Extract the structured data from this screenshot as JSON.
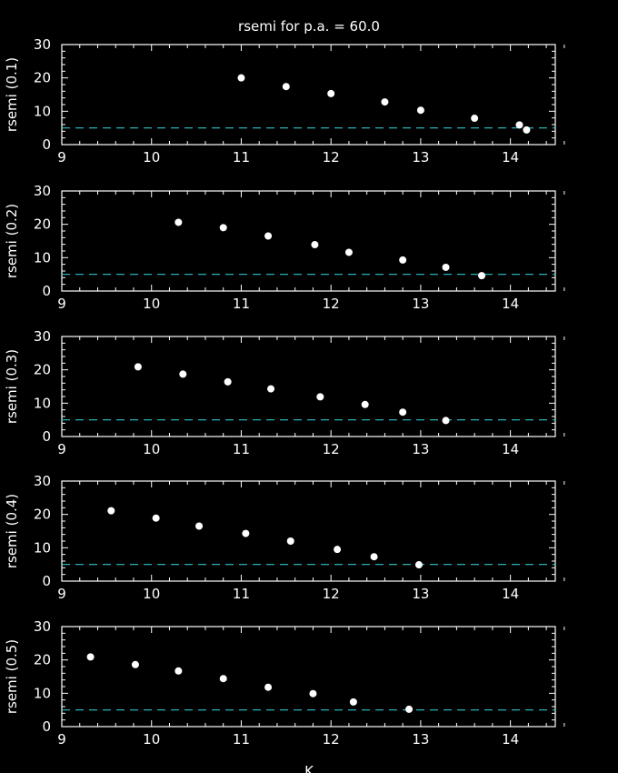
{
  "chart_data": {
    "type": "scatter",
    "title": "rsemi for p.a. = 60.0",
    "xlabel": "K",
    "xlim": [
      9,
      14.5
    ],
    "xticks": [
      9,
      10,
      11,
      12,
      13,
      14
    ],
    "ylim": [
      0,
      30
    ],
    "yticks": [
      0,
      10,
      20,
      30
    ],
    "point_color": "#ffffff",
    "background_color": "#000000",
    "reference_line": {
      "y": 5,
      "style": "dashed",
      "color": "#2ec4c8"
    },
    "panels": [
      {
        "ylabel": "rsemi (0.1)",
        "points": [
          {
            "x": 11.0,
            "y": 20.0
          },
          {
            "x": 11.5,
            "y": 17.4
          },
          {
            "x": 12.0,
            "y": 15.3
          },
          {
            "x": 12.6,
            "y": 12.8
          },
          {
            "x": 13.0,
            "y": 10.3
          },
          {
            "x": 13.6,
            "y": 7.9
          },
          {
            "x": 14.1,
            "y": 5.9
          },
          {
            "x": 14.18,
            "y": 4.4
          }
        ]
      },
      {
        "ylabel": "rsemi (0.2)",
        "points": [
          {
            "x": 10.3,
            "y": 20.6
          },
          {
            "x": 10.8,
            "y": 19.0
          },
          {
            "x": 11.3,
            "y": 16.5
          },
          {
            "x": 11.82,
            "y": 13.9
          },
          {
            "x": 12.2,
            "y": 11.6
          },
          {
            "x": 12.8,
            "y": 9.3
          },
          {
            "x": 13.28,
            "y": 7.1
          },
          {
            "x": 13.68,
            "y": 4.6
          }
        ]
      },
      {
        "ylabel": "rsemi (0.3)",
        "points": [
          {
            "x": 9.85,
            "y": 20.9
          },
          {
            "x": 10.35,
            "y": 18.7
          },
          {
            "x": 10.85,
            "y": 16.4
          },
          {
            "x": 11.33,
            "y": 14.3
          },
          {
            "x": 11.88,
            "y": 11.9
          },
          {
            "x": 12.38,
            "y": 9.6
          },
          {
            "x": 12.8,
            "y": 7.3
          },
          {
            "x": 13.28,
            "y": 4.8
          }
        ]
      },
      {
        "ylabel": "rsemi (0.4)",
        "points": [
          {
            "x": 9.55,
            "y": 21.1
          },
          {
            "x": 10.05,
            "y": 18.9
          },
          {
            "x": 10.53,
            "y": 16.5
          },
          {
            "x": 11.05,
            "y": 14.3
          },
          {
            "x": 11.55,
            "y": 12.0
          },
          {
            "x": 12.07,
            "y": 9.5
          },
          {
            "x": 12.48,
            "y": 7.3
          },
          {
            "x": 12.98,
            "y": 4.9
          }
        ]
      },
      {
        "ylabel": "rsemi (0.5)",
        "points": [
          {
            "x": 9.32,
            "y": 20.9
          },
          {
            "x": 9.82,
            "y": 18.6
          },
          {
            "x": 10.3,
            "y": 16.7
          },
          {
            "x": 10.8,
            "y": 14.4
          },
          {
            "x": 11.3,
            "y": 11.8
          },
          {
            "x": 11.8,
            "y": 9.9
          },
          {
            "x": 12.25,
            "y": 7.4
          },
          {
            "x": 12.87,
            "y": 5.2
          }
        ]
      }
    ]
  }
}
